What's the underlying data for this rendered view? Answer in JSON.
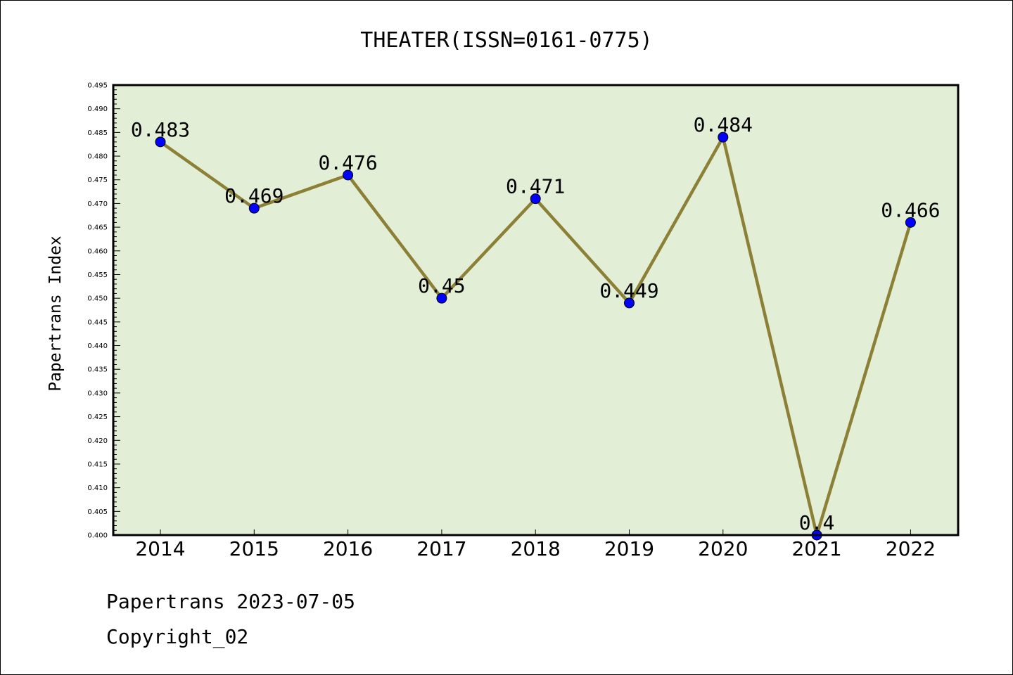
{
  "chart_data": {
    "type": "line",
    "title": "THEATER(ISSN=0161-0775)",
    "ylabel": "Papertrans Index",
    "xlabel": "",
    "categories": [
      "2014",
      "2015",
      "2016",
      "2017",
      "2018",
      "2019",
      "2020",
      "2021",
      "2022"
    ],
    "series": [
      {
        "values": [
          0.483,
          0.469,
          0.476,
          0.45,
          0.471,
          0.449,
          0.484,
          0.4,
          0.466
        ],
        "labels": [
          "0.483",
          "0.469",
          "0.476",
          "0.45",
          "0.471",
          "0.449",
          "0.484",
          "0.4",
          "0.466"
        ]
      }
    ],
    "ylim": [
      0.4,
      0.495
    ],
    "yticks": [
      "0.400",
      "0.405",
      "0.410",
      "0.415",
      "0.420",
      "0.425",
      "0.430",
      "0.435",
      "0.440",
      "0.445",
      "0.450",
      "0.455",
      "0.460",
      "0.465",
      "0.470",
      "0.475",
      "0.480",
      "0.485",
      "0.490",
      "0.495"
    ],
    "grid": false,
    "colors": {
      "plot_bg": "#e2efd6",
      "line": "#8c8036",
      "marker": "#0000ff",
      "axis": "#000000"
    }
  },
  "footer": {
    "line1": "Papertrans 2023-07-05",
    "line2": "Copyright_02"
  }
}
